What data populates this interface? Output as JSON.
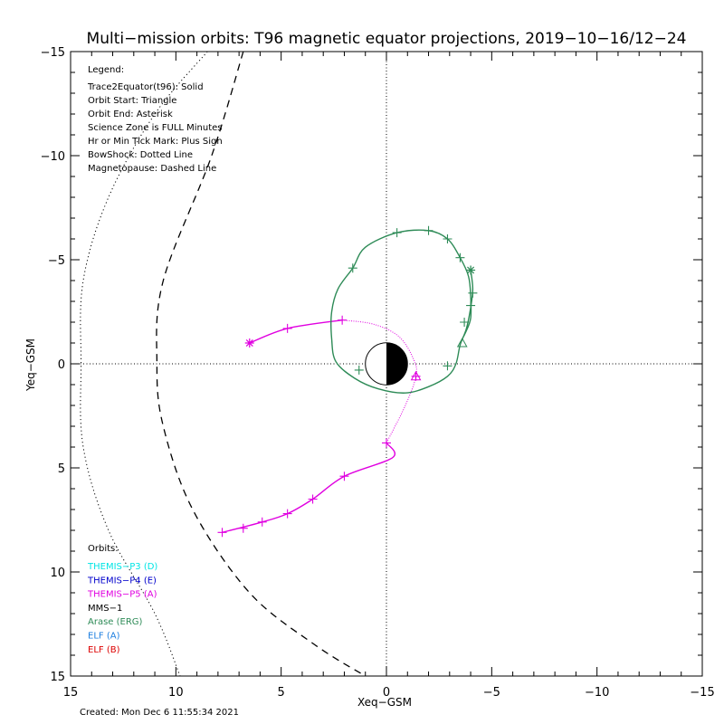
{
  "chart_data": {
    "type": "line",
    "title": "Multi−mission orbits: T96 magnetic equator projections, 2019−10−16/12−24",
    "xlabel": "Xeq−GSM",
    "ylabel": "Yeq−GSM",
    "xlim": [
      15,
      -15
    ],
    "ylim": [
      15,
      -15
    ],
    "x_ticks": [
      15,
      10,
      5,
      0,
      -5,
      -10,
      -15
    ],
    "x_tick_labels": [
      "15",
      "10",
      "5",
      "0",
      "−5",
      "−10",
      "−15"
    ],
    "y_ticks": [
      -15,
      -10,
      -5,
      0,
      5,
      10,
      15
    ],
    "y_tick_labels": [
      "−15",
      "−10",
      "−5",
      "0",
      "5",
      "10",
      "15"
    ],
    "grid": false,
    "legend": {
      "heading": "Legend:",
      "lines": [
        "Trace2Equator(t96): Solid",
        "Orbit Start: Triangle",
        "Orbit End: Asterisk",
        "Science Zone is FULL Minutes",
        "Hr or Min Tick Mark: Plus Sign",
        "BowShock: Dotted Line",
        "Magnetopause: Dashed Line"
      ]
    },
    "orbits_legend": {
      "heading": "Orbits:",
      "items": [
        {
          "name": "THEMIS−P3 (D)",
          "color": "#00e5e5"
        },
        {
          "name": "THEMIS−P4 (E)",
          "color": "#0000cc"
        },
        {
          "name": "THEMIS−P5 (A)",
          "color": "#e000e0"
        },
        {
          "name": "MMS−1",
          "color": "#000000"
        },
        {
          "name": "Arase (ERG)",
          "color": "#2e8b57"
        },
        {
          "name": "ELF (A)",
          "color": "#1e7fe0"
        },
        {
          "name": "ELF (B)",
          "color": "#dd0000"
        }
      ]
    },
    "boundaries": {
      "bowshock": {
        "style": "dotted",
        "points": [
          [
            8.5,
            -15
          ],
          [
            11,
            -12
          ],
          [
            13.2,
            -8
          ],
          [
            14.4,
            -4
          ],
          [
            14.5,
            0
          ],
          [
            14.4,
            4
          ],
          [
            13.2,
            8
          ],
          [
            11,
            12
          ],
          [
            9.8,
            15
          ]
        ]
      },
      "magnetopause": {
        "style": "dashed",
        "points": [
          [
            6.8,
            -15
          ],
          [
            8.3,
            -10
          ],
          [
            10.6,
            -4
          ],
          [
            10.9,
            0
          ],
          [
            10.6,
            3
          ],
          [
            9.2,
            7
          ],
          [
            6.5,
            11
          ],
          [
            3.4,
            13.5
          ],
          [
            1,
            15
          ]
        ]
      }
    },
    "series": [
      {
        "name": "THEMIS−P5 (A)",
        "color": "#e000e0",
        "solid": [
          [
            6.5,
            -1
          ],
          [
            4.7,
            -1.7
          ],
          [
            2.1,
            -2.1
          ]
        ],
        "dotted": [
          [
            2.1,
            -2.1
          ],
          [
            0.6,
            -1.9
          ],
          [
            -0.6,
            -1.3
          ],
          [
            -1.3,
            -0.2
          ],
          [
            -1.4,
            0.6
          ],
          [
            -0.9,
            2
          ],
          [
            0,
            3.8
          ]
        ],
        "solid2": [
          [
            0,
            3.8
          ],
          [
            -0.3,
            4.5
          ],
          [
            2,
            5.4
          ],
          [
            3.5,
            6.5
          ],
          [
            4.7,
            7.2
          ],
          [
            5.9,
            7.6
          ],
          [
            7.8,
            8.1
          ]
        ],
        "ticks": [
          [
            4.7,
            -1.7
          ],
          [
            2.1,
            -2.1
          ],
          [
            -1.4,
            0.6
          ],
          [
            0,
            3.8
          ],
          [
            2,
            5.4
          ],
          [
            3.5,
            6.5
          ],
          [
            4.7,
            7.2
          ],
          [
            5.9,
            7.6
          ],
          [
            6.8,
            7.9
          ],
          [
            7.8,
            8.1
          ]
        ],
        "start": [
          -1.4,
          0.6
        ],
        "end": [
          6.5,
          -1
        ]
      },
      {
        "name": "Arase (ERG)",
        "color": "#2e8b57",
        "solid": [
          [
            -3.5,
            -1
          ],
          [
            -3.8,
            -1.6
          ],
          [
            -4,
            -2.2
          ],
          [
            -4,
            -3.2
          ],
          [
            -3.9,
            -4.2
          ],
          [
            -3.5,
            -5.1
          ],
          [
            -2.9,
            -6
          ],
          [
            -2,
            -6.4
          ],
          [
            -0.5,
            -6.3
          ],
          [
            1,
            -5.6
          ],
          [
            1.6,
            -4.6
          ],
          [
            2.3,
            -3.6
          ],
          [
            2.6,
            -2.5
          ],
          [
            2.6,
            -1.2
          ],
          [
            2.4,
            -0.1
          ],
          [
            1.5,
            0.7
          ],
          [
            0.4,
            1.2
          ],
          [
            -0.9,
            1.4
          ],
          [
            -2,
            1.1
          ],
          [
            -2.9,
            0.6
          ],
          [
            -3.3,
            0
          ],
          [
            -3.5,
            -0.9
          ],
          [
            -3.8,
            -1.7
          ],
          [
            -4,
            -2.7
          ],
          [
            -4.1,
            -3.6
          ],
          [
            -4,
            -4.5
          ]
        ],
        "ticks": [
          [
            -0.5,
            -6.3
          ],
          [
            -2,
            -6.4
          ],
          [
            -2.9,
            -6
          ],
          [
            -3.5,
            -5.1
          ],
          [
            1.6,
            -4.6
          ],
          [
            -4,
            -4.5
          ],
          [
            -4.1,
            -3.4
          ],
          [
            -4,
            -2.8
          ],
          [
            -3.7,
            -2
          ],
          [
            1.3,
            0.3
          ],
          [
            -2.9,
            0.1
          ]
        ],
        "start": [
          -3.6,
          -1
        ],
        "end": [
          -4,
          -4.5
        ]
      }
    ],
    "earth": {
      "center": [
        0,
        0
      ],
      "radius": 1
    }
  },
  "footer": {
    "created": "Created: Mon Dec  6 11:55:34 2021"
  }
}
